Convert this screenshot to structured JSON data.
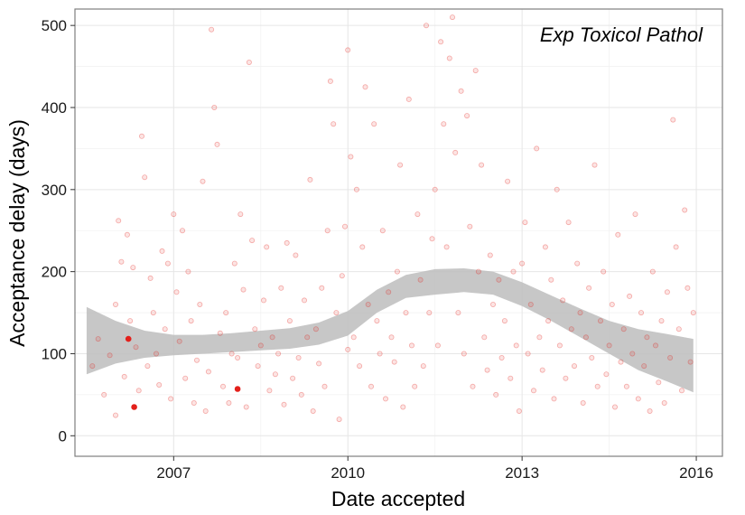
{
  "chart_data": {
    "type": "scatter",
    "title": "",
    "annotation": "Exp Toxicol Pathol",
    "xlabel": "Date accepted",
    "ylabel": "Acceptance delay (days)",
    "x_ticks": [
      2007,
      2010,
      2013,
      2016
    ],
    "y_ticks": [
      0,
      100,
      200,
      300,
      400,
      500
    ],
    "xlim": [
      2005.3,
      2016.45
    ],
    "ylim": [
      -25,
      520
    ],
    "grid": true,
    "legend": "none",
    "colors": {
      "points": "#e3201b",
      "band": "#bdbdbd",
      "grid_major": "#e6e6e6",
      "grid_minor": "#f2f2f2",
      "panel_border": "#7f7f7f"
    },
    "highlighted_points": [
      {
        "x": 2006.22,
        "y": 118
      },
      {
        "x": 2006.32,
        "y": 35
      },
      {
        "x": 2008.1,
        "y": 57
      }
    ],
    "smooth_band": {
      "x": [
        2005.5,
        2006.0,
        2006.5,
        2007.0,
        2007.5,
        2008.0,
        2008.5,
        2009.0,
        2009.5,
        2010.0,
        2010.5,
        2011.0,
        2011.5,
        2012.0,
        2012.5,
        2013.0,
        2013.5,
        2014.0,
        2014.5,
        2015.0,
        2015.5,
        2015.95
      ],
      "lower": [
        75,
        88,
        95,
        98,
        100,
        102,
        104,
        106,
        111,
        122,
        150,
        168,
        172,
        175,
        172,
        158,
        140,
        120,
        100,
        80,
        66,
        53
      ],
      "upper": [
        157,
        140,
        128,
        123,
        123,
        125,
        128,
        131,
        138,
        152,
        178,
        196,
        203,
        204,
        200,
        187,
        171,
        155,
        140,
        130,
        124,
        118
      ]
    },
    "points_note": "approximately 700 semi-transparent individual manuscripts spread between 2005.5 and 2016; y mostly 0-300 with outliers to 510",
    "points": [
      [
        2005.6,
        85
      ],
      [
        2005.7,
        118
      ],
      [
        2005.8,
        50
      ],
      [
        2005.9,
        98
      ],
      [
        2006.0,
        160
      ],
      [
        2006.0,
        25
      ],
      [
        2006.05,
        262
      ],
      [
        2006.1,
        212
      ],
      [
        2006.15,
        72
      ],
      [
        2006.2,
        245
      ],
      [
        2006.25,
        140
      ],
      [
        2006.3,
        205
      ],
      [
        2006.35,
        108
      ],
      [
        2006.4,
        55
      ],
      [
        2006.45,
        365
      ],
      [
        2006.5,
        315
      ],
      [
        2006.55,
        85
      ],
      [
        2006.6,
        192
      ],
      [
        2006.65,
        150
      ],
      [
        2006.7,
        100
      ],
      [
        2006.75,
        62
      ],
      [
        2006.8,
        225
      ],
      [
        2006.85,
        130
      ],
      [
        2006.9,
        210
      ],
      [
        2006.95,
        45
      ],
      [
        2007.0,
        270
      ],
      [
        2007.05,
        175
      ],
      [
        2007.1,
        115
      ],
      [
        2007.15,
        250
      ],
      [
        2007.2,
        70
      ],
      [
        2007.25,
        200
      ],
      [
        2007.3,
        140
      ],
      [
        2007.35,
        40
      ],
      [
        2007.4,
        92
      ],
      [
        2007.45,
        160
      ],
      [
        2007.5,
        310
      ],
      [
        2007.55,
        30
      ],
      [
        2007.6,
        78
      ],
      [
        2007.65,
        495
      ],
      [
        2007.7,
        400
      ],
      [
        2007.75,
        355
      ],
      [
        2007.8,
        125
      ],
      [
        2007.85,
        60
      ],
      [
        2007.9,
        150
      ],
      [
        2007.95,
        40
      ],
      [
        2008.0,
        100
      ],
      [
        2008.05,
        210
      ],
      [
        2008.1,
        95
      ],
      [
        2008.15,
        270
      ],
      [
        2008.2,
        178
      ],
      [
        2008.25,
        35
      ],
      [
        2008.3,
        455
      ],
      [
        2008.35,
        238
      ],
      [
        2008.4,
        130
      ],
      [
        2008.45,
        85
      ],
      [
        2008.5,
        110
      ],
      [
        2008.55,
        165
      ],
      [
        2008.6,
        230
      ],
      [
        2008.65,
        55
      ],
      [
        2008.7,
        120
      ],
      [
        2008.75,
        75
      ],
      [
        2008.8,
        100
      ],
      [
        2008.85,
        180
      ],
      [
        2008.9,
        38
      ],
      [
        2008.95,
        235
      ],
      [
        2009.0,
        140
      ],
      [
        2009.05,
        70
      ],
      [
        2009.1,
        220
      ],
      [
        2009.15,
        95
      ],
      [
        2009.2,
        50
      ],
      [
        2009.25,
        165
      ],
      [
        2009.3,
        120
      ],
      [
        2009.35,
        312
      ],
      [
        2009.4,
        30
      ],
      [
        2009.45,
        130
      ],
      [
        2009.5,
        88
      ],
      [
        2009.55,
        180
      ],
      [
        2009.6,
        60
      ],
      [
        2009.65,
        250
      ],
      [
        2009.7,
        432
      ],
      [
        2009.75,
        380
      ],
      [
        2009.8,
        150
      ],
      [
        2009.85,
        20
      ],
      [
        2009.9,
        195
      ],
      [
        2009.95,
        255
      ],
      [
        2010.0,
        105
      ],
      [
        2010.0,
        470
      ],
      [
        2010.05,
        340
      ],
      [
        2010.1,
        120
      ],
      [
        2010.15,
        300
      ],
      [
        2010.2,
        85
      ],
      [
        2010.25,
        230
      ],
      [
        2010.3,
        425
      ],
      [
        2010.35,
        160
      ],
      [
        2010.4,
        60
      ],
      [
        2010.45,
        380
      ],
      [
        2010.5,
        140
      ],
      [
        2010.55,
        100
      ],
      [
        2010.6,
        250
      ],
      [
        2010.65,
        45
      ],
      [
        2010.7,
        175
      ],
      [
        2010.75,
        120
      ],
      [
        2010.8,
        90
      ],
      [
        2010.85,
        200
      ],
      [
        2010.9,
        330
      ],
      [
        2010.95,
        35
      ],
      [
        2011.0,
        150
      ],
      [
        2011.05,
        410
      ],
      [
        2011.1,
        110
      ],
      [
        2011.15,
        60
      ],
      [
        2011.2,
        270
      ],
      [
        2011.25,
        190
      ],
      [
        2011.3,
        85
      ],
      [
        2011.35,
        500
      ],
      [
        2011.4,
        150
      ],
      [
        2011.45,
        240
      ],
      [
        2011.5,
        300
      ],
      [
        2011.55,
        110
      ],
      [
        2011.6,
        480
      ],
      [
        2011.65,
        380
      ],
      [
        2011.7,
        230
      ],
      [
        2011.75,
        460
      ],
      [
        2011.8,
        510
      ],
      [
        2011.85,
        345
      ],
      [
        2011.9,
        150
      ],
      [
        2011.95,
        420
      ],
      [
        2012.0,
        100
      ],
      [
        2012.05,
        390
      ],
      [
        2012.1,
        255
      ],
      [
        2012.15,
        60
      ],
      [
        2012.2,
        445
      ],
      [
        2012.25,
        200
      ],
      [
        2012.3,
        330
      ],
      [
        2012.35,
        120
      ],
      [
        2012.4,
        80
      ],
      [
        2012.45,
        220
      ],
      [
        2012.5,
        160
      ],
      [
        2012.55,
        50
      ],
      [
        2012.6,
        190
      ],
      [
        2012.65,
        95
      ],
      [
        2012.7,
        140
      ],
      [
        2012.75,
        310
      ],
      [
        2012.8,
        70
      ],
      [
        2012.85,
        200
      ],
      [
        2012.9,
        110
      ],
      [
        2012.95,
        30
      ],
      [
        2013.0,
        210
      ],
      [
        2013.05,
        260
      ],
      [
        2013.1,
        100
      ],
      [
        2013.15,
        160
      ],
      [
        2013.2,
        55
      ],
      [
        2013.25,
        350
      ],
      [
        2013.3,
        120
      ],
      [
        2013.35,
        80
      ],
      [
        2013.4,
        230
      ],
      [
        2013.45,
        140
      ],
      [
        2013.5,
        190
      ],
      [
        2013.55,
        45
      ],
      [
        2013.6,
        300
      ],
      [
        2013.65,
        110
      ],
      [
        2013.7,
        165
      ],
      [
        2013.75,
        70
      ],
      [
        2013.8,
        260
      ],
      [
        2013.85,
        130
      ],
      [
        2013.9,
        85
      ],
      [
        2013.95,
        210
      ],
      [
        2014.0,
        150
      ],
      [
        2014.05,
        40
      ],
      [
        2014.1,
        120
      ],
      [
        2014.15,
        180
      ],
      [
        2014.2,
        95
      ],
      [
        2014.25,
        330
      ],
      [
        2014.3,
        60
      ],
      [
        2014.35,
        140
      ],
      [
        2014.4,
        200
      ],
      [
        2014.45,
        75
      ],
      [
        2014.5,
        110
      ],
      [
        2014.55,
        160
      ],
      [
        2014.6,
        35
      ],
      [
        2014.65,
        245
      ],
      [
        2014.7,
        90
      ],
      [
        2014.75,
        130
      ],
      [
        2014.8,
        60
      ],
      [
        2014.85,
        170
      ],
      [
        2014.9,
        100
      ],
      [
        2014.95,
        270
      ],
      [
        2015.0,
        45
      ],
      [
        2015.05,
        150
      ],
      [
        2015.1,
        85
      ],
      [
        2015.15,
        120
      ],
      [
        2015.2,
        30
      ],
      [
        2015.25,
        200
      ],
      [
        2015.3,
        110
      ],
      [
        2015.35,
        65
      ],
      [
        2015.4,
        140
      ],
      [
        2015.45,
        40
      ],
      [
        2015.5,
        175
      ],
      [
        2015.55,
        95
      ],
      [
        2015.6,
        385
      ],
      [
        2015.65,
        230
      ],
      [
        2015.7,
        130
      ],
      [
        2015.75,
        55
      ],
      [
        2015.8,
        275
      ],
      [
        2015.85,
        180
      ],
      [
        2015.9,
        90
      ],
      [
        2015.95,
        150
      ]
    ]
  }
}
